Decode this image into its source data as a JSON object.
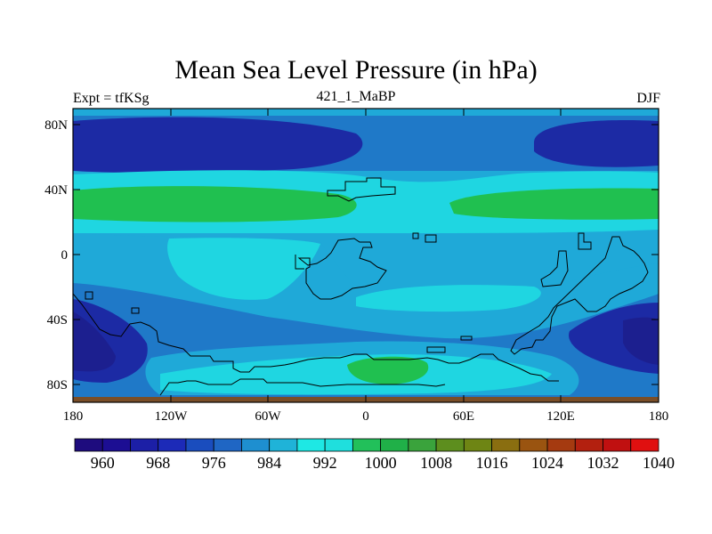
{
  "title": "Mean Sea Level Pressure (in hPa)",
  "left_label": "Expt = tfKSg",
  "center_label": "421_1_MaBP",
  "right_label": "DJF",
  "lat_ticks": [
    "80N",
    "40N",
    "0",
    "40S",
    "80S"
  ],
  "lon_ticks": [
    "180",
    "120W",
    "60W",
    "0",
    "60E",
    "120E",
    "180"
  ],
  "colorbar": {
    "colors": [
      "#1e0c7e",
      "#1c0e93",
      "#1c1fa6",
      "#1c2ab8",
      "#1a4dbe",
      "#1f66c4",
      "#1e8fd0",
      "#1fb3d8",
      "#1ee8e4",
      "#1fdfdd",
      "#22c05a",
      "#20b048",
      "#3aa33c",
      "#5d8e1e",
      "#6e8514",
      "#8a6e10",
      "#9a5410",
      "#a53a10",
      "#b3200f",
      "#c01010",
      "#e01010"
    ],
    "labels": [
      "960",
      "968",
      "976",
      "984",
      "992",
      "1000",
      "1008",
      "1016",
      "1024",
      "1032",
      "1040"
    ]
  },
  "colors": {
    "deep": "#1c1f8f",
    "dark": "#1c2aa4",
    "mid": "#1e48b8",
    "med": "#1f79c8",
    "light": "#1fa9d8",
    "pale": "#1fd6e1",
    "cyan": "#1ee8e4",
    "green": "#20c050",
    "brown": "#7a4e28"
  }
}
